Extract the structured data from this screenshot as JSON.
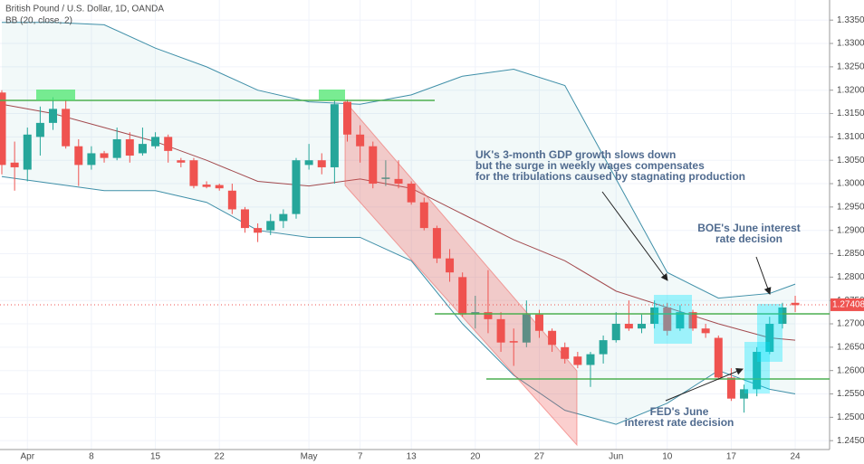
{
  "chart_data": {
    "type": "candlestick",
    "title": "British Pound / U.S. Dollar, 1D, OANDA",
    "indicator": "BB (20, close, 2)",
    "up_color": "#26a69a",
    "down_color": "#ef5350",
    "categories": [
      null,
      null,
      "Apr",
      null,
      null,
      null,
      null,
      "8",
      null,
      null,
      null,
      null,
      "15",
      null,
      null,
      null,
      null,
      "22",
      null,
      null,
      null,
      null,
      null,
      null,
      "May",
      null,
      null,
      null,
      "7",
      null,
      null,
      null,
      "13",
      null,
      null,
      null,
      null,
      "20",
      null,
      null,
      null,
      null,
      "27",
      null,
      null,
      null,
      null,
      null,
      "Jun",
      null,
      null,
      null,
      "10",
      null,
      null,
      null,
      null,
      "17",
      null,
      null,
      null,
      null,
      "24"
    ],
    "open": [
      1.3195,
      1.3045,
      1.303,
      1.31,
      1.313,
      1.316,
      1.308,
      1.304,
      1.3065,
      1.3055,
      1.3095,
      1.3065,
      1.308,
      1.31,
      1.305,
      1.305,
      1.2998,
      1.2997,
      1.2985,
      1.2945,
      1.2905,
      1.29,
      1.292,
      1.2935,
      1.304,
      1.305,
      1.3035,
      1.3175,
      1.3105,
      1.308,
      1.301,
      1.301,
      1.3,
      1.296,
      1.2905,
      1.284,
      1.28,
      1.272,
      1.2725,
      1.271,
      1.2663,
      1.266,
      1.272,
      1.2685,
      1.265,
      1.263,
      1.2612,
      1.2635,
      1.2665,
      1.27,
      1.269,
      1.27,
      1.2735,
      1.269,
      1.2725,
      1.269,
      1.267,
      1.2585,
      1.254,
      1.256,
      1.264,
      1.27,
      1.2745
    ],
    "high": [
      1.32,
      1.309,
      1.312,
      1.3165,
      1.3185,
      1.318,
      1.3095,
      1.308,
      1.307,
      1.312,
      1.311,
      1.312,
      1.311,
      1.3105,
      1.3055,
      1.3055,
      1.3005,
      1.3,
      1.3,
      1.295,
      1.2915,
      1.2935,
      1.2945,
      1.3055,
      1.3085,
      1.3065,
      1.318,
      1.318,
      1.3125,
      1.309,
      1.305,
      1.305,
      1.3005,
      1.297,
      1.291,
      1.286,
      1.281,
      1.276,
      1.2815,
      1.2725,
      1.269,
      1.275,
      1.273,
      1.269,
      1.266,
      1.264,
      1.264,
      1.2675,
      1.2725,
      1.275,
      1.272,
      1.275,
      1.2745,
      1.274,
      1.273,
      1.27,
      1.2675,
      1.2605,
      1.257,
      1.265,
      1.2715,
      1.2745,
      1.276
    ],
    "low": [
      1.302,
      1.2985,
      1.3005,
      1.306,
      1.3115,
      1.3075,
      1.2995,
      1.303,
      1.3045,
      1.305,
      1.3045,
      1.306,
      1.3075,
      1.3045,
      1.3035,
      1.299,
      1.299,
      1.2985,
      1.2935,
      1.2895,
      1.2875,
      1.289,
      1.2905,
      1.2925,
      1.303,
      1.302,
      1.3,
      1.309,
      1.3045,
      1.299,
      1.2995,
      1.299,
      1.2955,
      1.29,
      1.283,
      1.279,
      1.2715,
      1.269,
      1.268,
      1.264,
      1.261,
      1.265,
      1.267,
      1.264,
      1.2615,
      1.2605,
      1.2565,
      1.2615,
      1.266,
      1.2685,
      1.268,
      1.269,
      1.2675,
      1.2685,
      1.2685,
      1.267,
      1.258,
      1.2535,
      1.251,
      1.2545,
      1.2635,
      1.269,
      1.2725
    ],
    "close": [
      1.304,
      1.3035,
      1.3105,
      1.313,
      1.316,
      1.308,
      1.304,
      1.3065,
      1.3055,
      1.3095,
      1.306,
      1.3085,
      1.31,
      1.307,
      1.3045,
      1.2995,
      1.2993,
      1.299,
      1.2945,
      1.2905,
      1.2895,
      1.292,
      1.2935,
      1.305,
      1.305,
      1.3035,
      1.317,
      1.3105,
      1.308,
      1.3,
      1.3013,
      1.3,
      1.296,
      1.2905,
      1.284,
      1.281,
      1.272,
      1.2725,
      1.271,
      1.266,
      1.266,
      1.272,
      1.2685,
      1.2655,
      1.2625,
      1.2612,
      1.2635,
      1.2665,
      1.27,
      1.269,
      1.27,
      1.2735,
      1.2685,
      1.2725,
      1.269,
      1.268,
      1.2585,
      1.254,
      1.256,
      1.264,
      1.27,
      1.2735,
      1.274
    ],
    "bb": {
      "x": [
        0,
        4,
        8,
        12,
        16,
        20,
        24,
        28,
        32,
        36,
        40,
        44,
        48,
        52,
        56,
        60,
        62
      ],
      "upper": [
        1.3345,
        1.3345,
        1.334,
        1.329,
        1.325,
        1.32,
        1.3175,
        1.317,
        1.319,
        1.323,
        1.3245,
        1.321,
        1.301,
        1.281,
        1.2755,
        1.2765,
        1.2785
      ],
      "middle": [
        1.317,
        1.315,
        1.312,
        1.309,
        1.305,
        1.3005,
        1.2995,
        1.301,
        1.299,
        1.2935,
        1.288,
        1.2835,
        1.277,
        1.2735,
        1.27,
        1.267,
        1.2665
      ],
      "lower": [
        1.3015,
        1.3,
        1.2985,
        1.2985,
        1.296,
        1.29,
        1.2885,
        1.2885,
        1.2835,
        1.27,
        1.259,
        1.2515,
        1.2485,
        1.253,
        1.26,
        1.256,
        1.255
      ],
      "band_color": "#3f8fa8",
      "basis_color": "#a34a4e"
    },
    "last_price": 1.27408,
    "ylim": [
      1.2431,
      1.3393
    ],
    "yticks": [
      {
        "value": 1.245,
        "label": "1.24500"
      },
      {
        "value": 1.25,
        "label": "1.25000"
      },
      {
        "value": 1.255,
        "label": "1.25500"
      },
      {
        "value": 1.26,
        "label": "1.26000"
      },
      {
        "value": 1.265,
        "label": "1.26500"
      },
      {
        "value": 1.27,
        "label": "1.27000"
      },
      {
        "value": 1.275,
        "label": "1.27500"
      },
      {
        "value": 1.28,
        "label": "1.28000"
      },
      {
        "value": 1.285,
        "label": "1.28500"
      },
      {
        "value": 1.29,
        "label": "1.29000"
      },
      {
        "value": 1.295,
        "label": "1.29500"
      },
      {
        "value": 1.3,
        "label": "1.30000"
      },
      {
        "value": 1.305,
        "label": "1.30500"
      },
      {
        "value": 1.31,
        "label": "1.31000"
      },
      {
        "value": 1.315,
        "label": "1.31500"
      },
      {
        "value": 1.32,
        "label": "1.32000"
      },
      {
        "value": 1.325,
        "label": "1.32500"
      },
      {
        "value": 1.33,
        "label": "1.33000"
      },
      {
        "value": 1.335,
        "label": "1.33500"
      }
    ],
    "annotations": {
      "gdp": [
        "UK's 3-month GDP growth slows down",
        "but the surge in weekly wages compensates",
        "for the tribulations caused by stagnating production"
      ],
      "boe": [
        "BOE's June interest",
        "rate decision"
      ],
      "fed": [
        "FED's June",
        "interest rate decision"
      ]
    }
  }
}
